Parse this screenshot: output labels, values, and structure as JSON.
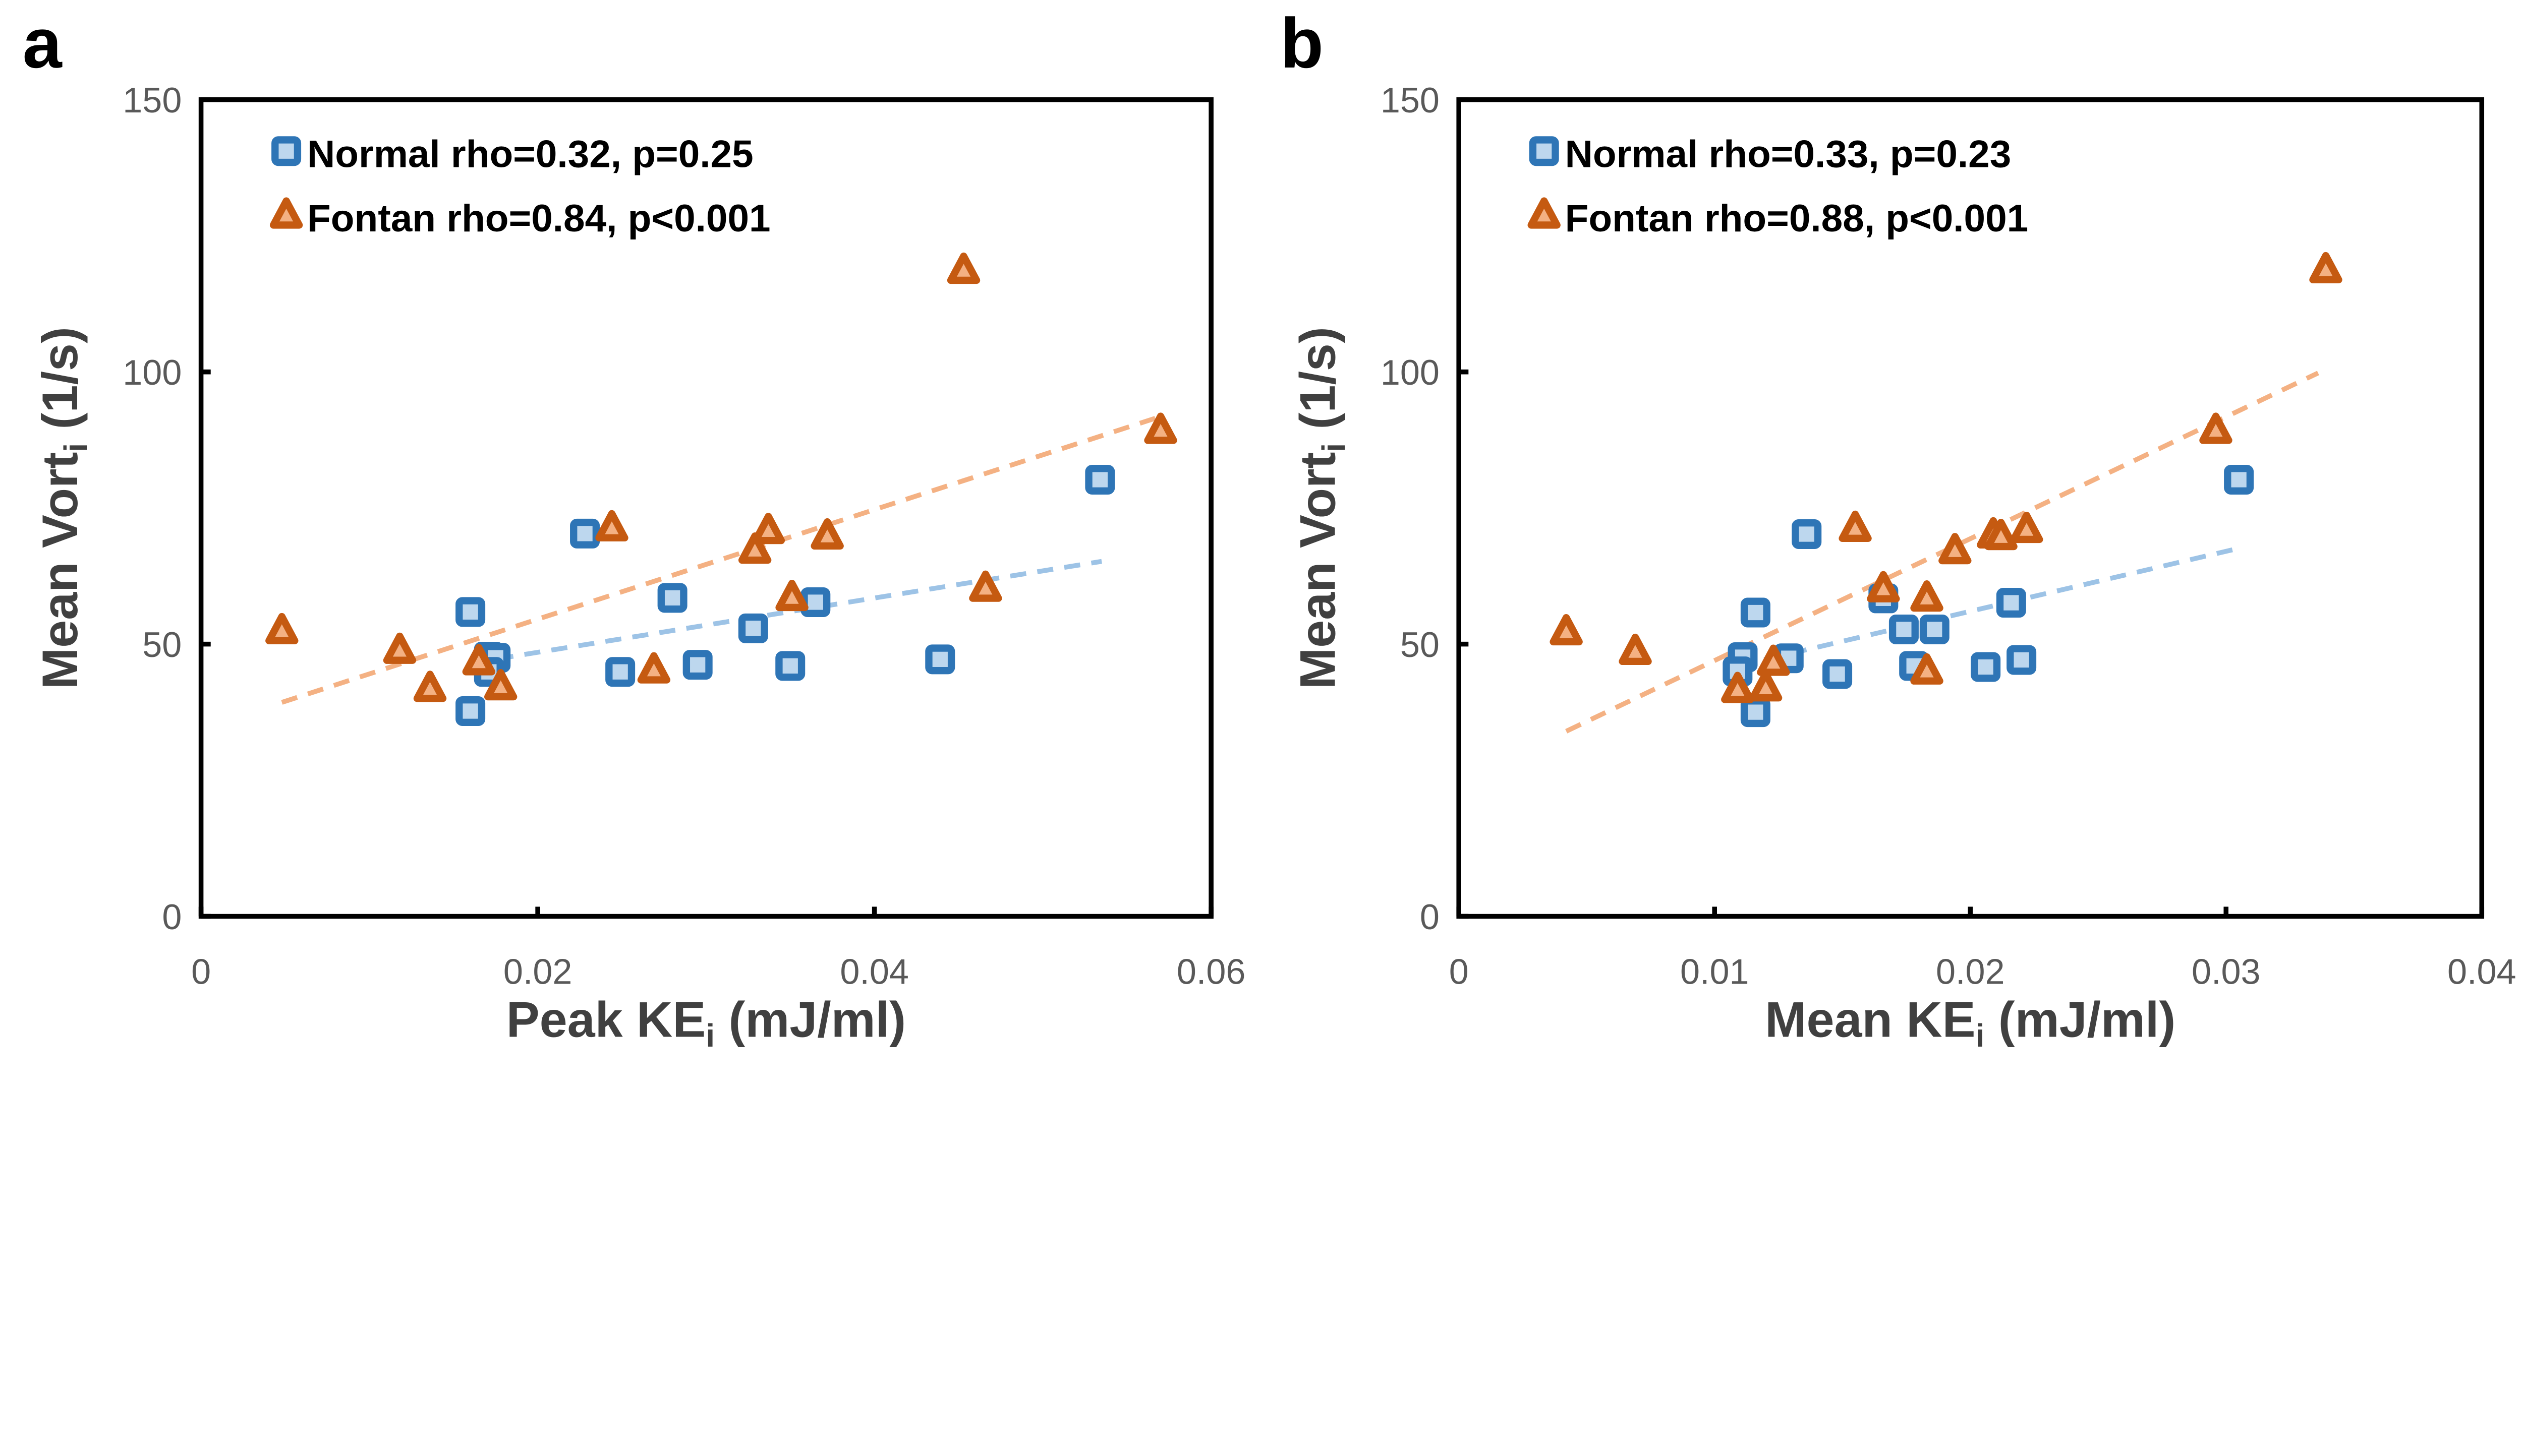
{
  "colors": {
    "normal_stroke": "#2E75B6",
    "normal_fill": "#BDD7EE",
    "fontan_stroke": "#C55A11",
    "fontan_fill": "#F4B183",
    "normal_trend": "#9DC3E6",
    "fontan_trend": "#F4B183"
  },
  "chart_data": [
    {
      "type": "scatter",
      "panel_label": "a",
      "xlabel": "Peak KE_i (mJ/ml)",
      "ylabel": "Mean Vort_i (1/s)",
      "xlim": [
        0,
        0.06
      ],
      "ylim": [
        0,
        150
      ],
      "xticks": [
        "0",
        "0.02",
        "0.04",
        "0.06"
      ],
      "yticks": [
        "0",
        "50",
        "100",
        "150"
      ],
      "legend_position": "top-left",
      "series": [
        {
          "name": "Normal rho=0.32, p=0.25",
          "marker": "square",
          "x": [
            0.016,
            0.016,
            0.0171,
            0.0175,
            0.0171,
            0.0228,
            0.0249,
            0.028,
            0.0295,
            0.0328,
            0.035,
            0.0365,
            0.0439,
            0.0534
          ],
          "y": [
            55.9,
            37.7,
            47.7,
            47.5,
            44.9,
            70.3,
            44.9,
            58.5,
            46.2,
            52.9,
            46.0,
            57.7,
            47.2,
            80.2
          ],
          "trend": {
            "x": [
              0.016,
              0.0535
            ],
            "y": [
              46.5,
              65.2
            ]
          }
        },
        {
          "name": "Fontan rho=0.84, p<0.001",
          "marker": "triangle",
          "x": [
            0.0048,
            0.0118,
            0.0136,
            0.0165,
            0.0178,
            0.0244,
            0.0269,
            0.0329,
            0.0337,
            0.0351,
            0.0372,
            0.0453,
            0.0466,
            0.057
          ],
          "y": [
            52.4,
            48.8,
            41.8,
            46.7,
            42.1,
            71.3,
            45.2,
            67.2,
            70.8,
            58.5,
            69.8,
            118.6,
            60.2,
            89.2
          ],
          "trend": {
            "x": [
              0.0048,
              0.057
            ],
            "y": [
              39.3,
              91.8
            ]
          }
        }
      ]
    },
    {
      "type": "scatter",
      "panel_label": "b",
      "xlabel": "Mean KE_i (mJ/ml)",
      "ylabel": "Mean Vort_i (1/s)",
      "xlim": [
        0,
        0.04
      ],
      "ylim": [
        0,
        150
      ],
      "xticks": [
        "0",
        "0.01",
        "0.02",
        "0.03",
        "0.04"
      ],
      "yticks": [
        "0",
        "50",
        "100",
        "150"
      ],
      "legend_position": "top-left",
      "series": [
        {
          "name": "Normal rho=0.33, p=0.23",
          "marker": "square",
          "x": [
            0.0116,
            0.0116,
            0.0111,
            0.0109,
            0.0129,
            0.0148,
            0.0136,
            0.0166,
            0.0174,
            0.0186,
            0.0178,
            0.0206,
            0.0216,
            0.022,
            0.0305
          ],
          "y": [
            55.8,
            37.5,
            47.6,
            45.0,
            47.4,
            44.5,
            70.2,
            58.4,
            52.7,
            52.7,
            46.0,
            45.8,
            57.6,
            47.1,
            80.2
          ],
          "trend": {
            "x": [
              0.0109,
              0.0305
            ],
            "y": [
              46.0,
              67.6
            ]
          }
        },
        {
          "name": "Fontan rho=0.88, p<0.001",
          "marker": "triangle",
          "x": [
            0.0042,
            0.0069,
            0.0109,
            0.012,
            0.0123,
            0.0155,
            0.0166,
            0.0183,
            0.0183,
            0.0194,
            0.0209,
            0.0212,
            0.0222,
            0.0296,
            0.0339
          ],
          "y": [
            52.2,
            48.6,
            41.6,
            41.9,
            46.6,
            71.2,
            60.1,
            45.0,
            58.4,
            67.1,
            70.0,
            69.7,
            71.0,
            89.2,
            118.7
          ],
          "trend": {
            "x": [
              0.0042,
              0.0336
            ],
            "y": [
              34.0,
              99.8
            ]
          }
        }
      ]
    }
  ]
}
